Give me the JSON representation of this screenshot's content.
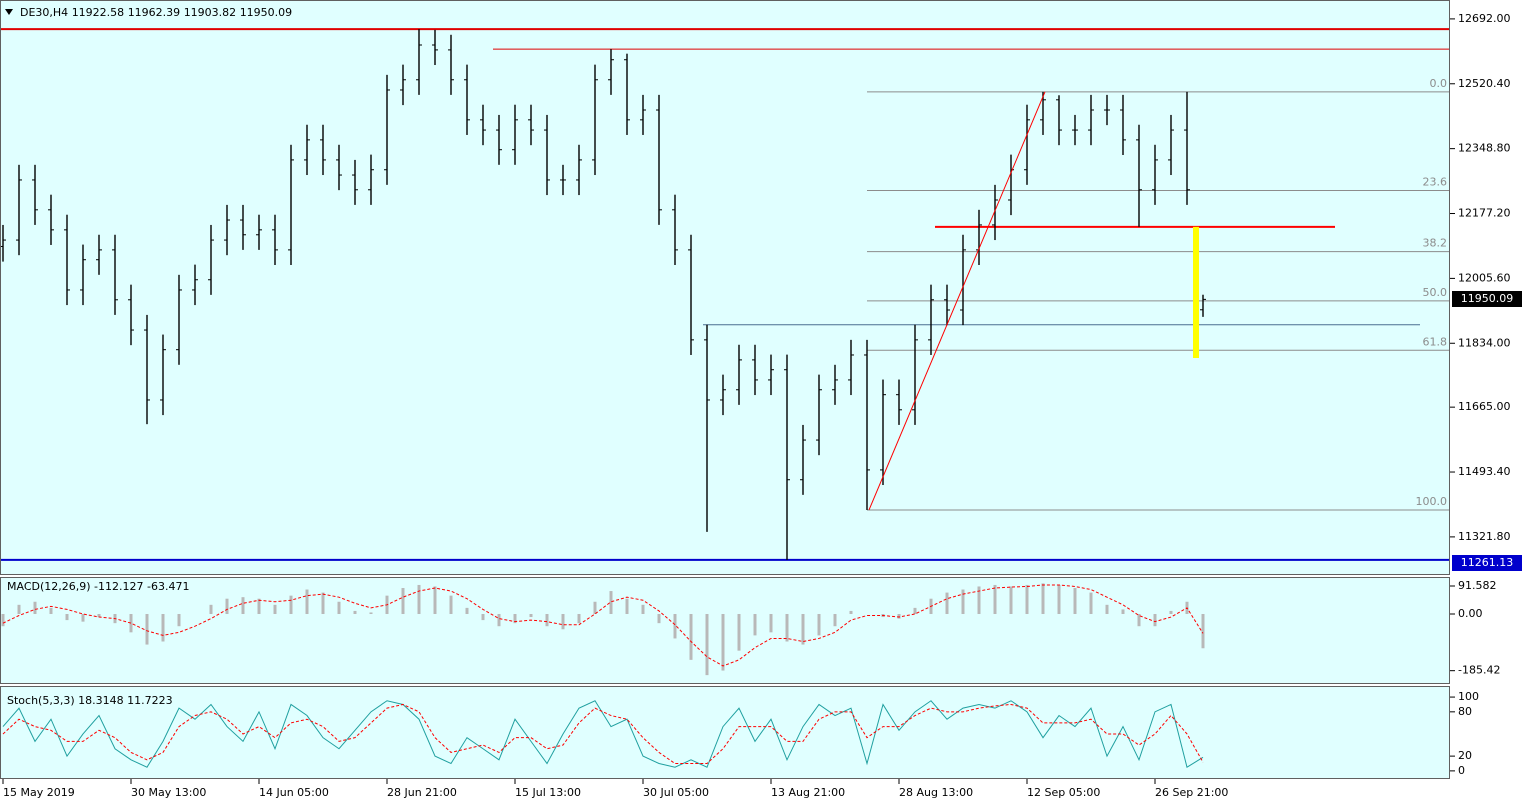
{
  "chart_data": [
    {
      "type": "ohlc",
      "title": "DE30,H4",
      "color": "#000000",
      "categories": [
        "15 May 2019",
        null,
        null,
        null,
        null,
        null,
        null,
        null,
        "30 May 13:00",
        null,
        null,
        null,
        null,
        null,
        null,
        null,
        "14 Jun 05:00",
        null,
        null,
        null,
        null,
        null,
        null,
        null,
        "28 Jun 21:00",
        null,
        null,
        null,
        null,
        null,
        null,
        null,
        "15 Jul 13:00",
        null,
        null,
        null,
        null,
        null,
        null,
        null,
        "30 Jul 05:00",
        null,
        null,
        null,
        null,
        null,
        null,
        null,
        "13 Aug 21:00",
        null,
        null,
        null,
        null,
        null,
        null,
        null,
        "28 Aug 13:00",
        null,
        null,
        null,
        null,
        null,
        null,
        null,
        "12 Sep 05:00",
        null,
        null,
        null,
        null,
        null,
        null,
        null,
        "26 Sep 21:00",
        null,
        null,
        null
      ],
      "open": [
        12090,
        12107,
        12266,
        12187,
        12134,
        11975,
        12055,
        12081,
        11949,
        11869,
        11684,
        11817,
        11975,
        12002,
        12107,
        12160,
        12121,
        12134,
        12081,
        12319,
        12372,
        12319,
        12279,
        12240,
        12293,
        12504,
        12531,
        12623,
        12610,
        12531,
        12425,
        12398,
        12346,
        12425,
        12398,
        12266,
        12266,
        12319,
        12531,
        12584,
        12425,
        12451,
        12187,
        12081,
        11843,
        11684,
        11711,
        11790,
        11737,
        11764,
        11473,
        11578,
        11711,
        11737,
        11803,
        11499,
        11698,
        11658,
        11843,
        11949,
        11922,
        12081,
        12147,
        12213,
        12293,
        12425,
        12478,
        12398,
        12398,
        12451,
        12451,
        12372,
        12240,
        12319,
        12398,
        11922.58
      ],
      "high": [
        12147,
        12306,
        12306,
        12227,
        12174,
        12095,
        12121,
        12121,
        11989,
        11909,
        11857,
        12015,
        12042,
        12147,
        12200,
        12200,
        12174,
        12174,
        12359,
        12412,
        12412,
        12359,
        12319,
        12333,
        12544,
        12571,
        12665,
        12663,
        12650,
        12571,
        12465,
        12438,
        12465,
        12465,
        12438,
        12306,
        12359,
        12571,
        12612,
        12600,
        12491,
        12491,
        12227,
        12121,
        11883,
        11751,
        11830,
        11830,
        11804,
        11804,
        11618,
        11751,
        11777,
        11843,
        11843,
        11738,
        11738,
        11883,
        11989,
        11989,
        12121,
        12187,
        12253,
        12333,
        12465,
        12499,
        12490,
        12438,
        12491,
        12491,
        12491,
        12412,
        12359,
        12438,
        12499,
        11962.39
      ],
      "low": [
        12050,
        12067,
        12147,
        12094,
        11935,
        11935,
        12015,
        11909,
        11829,
        11620,
        11644,
        11777,
        11935,
        11962,
        12067,
        12081,
        12081,
        12041,
        12041,
        12279,
        12279,
        12239,
        12200,
        12200,
        12253,
        12464,
        12491,
        12570,
        12491,
        12385,
        12358,
        12306,
        12306,
        12358,
        12226,
        12226,
        12226,
        12279,
        12491,
        12385,
        12385,
        12147,
        12041,
        11803,
        11335,
        11644,
        11671,
        11697,
        11697,
        11261.13,
        11433,
        11538,
        11671,
        11697,
        11393,
        11459,
        11618,
        11618,
        11803,
        11882,
        11882,
        12041,
        12107,
        12173,
        12253,
        12385,
        12358,
        12358,
        12358,
        12411,
        12332,
        12142,
        12200,
        12279,
        12200,
        11903.82
      ],
      "close": [
        12107,
        12266,
        12187,
        12134,
        11975,
        12055,
        12081,
        11949,
        11869,
        11684,
        11817,
        11975,
        12002,
        12107,
        12160,
        12121,
        12134,
        12081,
        12319,
        12372,
        12319,
        12279,
        12240,
        12293,
        12504,
        12531,
        12623,
        12610,
        12531,
        12425,
        12398,
        12346,
        12425,
        12398,
        12266,
        12266,
        12319,
        12531,
        12584,
        12425,
        12451,
        12187,
        12081,
        11843,
        11684,
        11711,
        11790,
        11737,
        11764,
        11473,
        11578,
        11711,
        11737,
        11803,
        11499,
        11698,
        11658,
        11843,
        11949,
        11922,
        12081,
        12147,
        12213,
        12293,
        12425,
        12478,
        12398,
        12398,
        12451,
        12451,
        12372,
        12240,
        12319,
        12398,
        12240,
        11950.09
      ],
      "ylim": [
        11221,
        12742
      ],
      "yticks": [
        {
          "value": 12692,
          "label": "12692.00"
        },
        {
          "value": 12520.4,
          "label": "12520.40"
        },
        {
          "value": 12348.8,
          "label": "12348.80"
        },
        {
          "value": 12177.2,
          "label": "12177.20"
        },
        {
          "value": 12005.6,
          "label": "12005.60"
        },
        {
          "value": 11834,
          "label": "11834.00"
        },
        {
          "value": 11665,
          "label": "11665.00"
        },
        {
          "value": 11493.4,
          "label": "11493.40"
        },
        {
          "value": 11321.8,
          "label": "11321.80"
        }
      ],
      "hlines": [
        {
          "value": 12665,
          "color": "#e00000"
        },
        {
          "value": 12612,
          "color": "#e00000"
        },
        {
          "value": 12142,
          "color": "#ff0000"
        },
        {
          "value": 11883,
          "color": "#4a6f90"
        },
        {
          "value": 11261.13,
          "color": "#0000cc"
        }
      ],
      "fibo": {
        "high": 12499,
        "low": 11393,
        "color": "#8c8c8c",
        "levels": [
          {
            "value": 0,
            "label": "0.0"
          },
          23.6,
          38.2,
          {
            "value": 50,
            "label": "50.0"
          },
          61.8,
          {
            "value": 100,
            "label": "100.0"
          }
        ]
      },
      "trendline": {
        "from": 11393,
        "to": 12499,
        "color": "#ff0000"
      },
      "rectangle": {
        "top": 12142,
        "bottom": 11795,
        "color": "#ffff00"
      }
    },
    {
      "type": "macd",
      "title": "MACD(12,26,9)",
      "series": [
        {
          "color": "#b8b8b8",
          "values": [
            -40,
            30,
            40,
            20,
            -20,
            -25,
            -10,
            -30,
            -60,
            -100,
            -90,
            -40,
            0,
            30,
            50,
            55,
            50,
            30,
            60,
            80,
            70,
            40,
            10,
            5,
            60,
            85,
            95,
            90,
            60,
            20,
            -20,
            -40,
            -30,
            -10,
            -40,
            -50,
            -30,
            40,
            75,
            50,
            30,
            -30,
            -80,
            -150,
            -200,
            -185,
            -120,
            -70,
            -60,
            -90,
            -100,
            -70,
            -40,
            10,
            0,
            -10,
            -15,
            20,
            50,
            70,
            80,
            90,
            95,
            90,
            95,
            100,
            95,
            85,
            70,
            30,
            15,
            -40,
            -40,
            10,
            40,
            -112.127
          ]
        },
        {
          "color": "#ff0000",
          "dashed": true,
          "values": [
            -30,
            -5,
            15,
            25,
            15,
            0,
            -10,
            -15,
            -30,
            -55,
            -70,
            -60,
            -40,
            -15,
            15,
            35,
            45,
            40,
            45,
            60,
            65,
            55,
            35,
            20,
            30,
            55,
            75,
            85,
            75,
            50,
            15,
            -15,
            -25,
            -20,
            -25,
            -35,
            -35,
            0,
            40,
            55,
            45,
            10,
            -35,
            -90,
            -140,
            -170,
            -150,
            -110,
            -80,
            -80,
            -90,
            -80,
            -60,
            -20,
            -5,
            -5,
            -10,
            0,
            25,
            50,
            65,
            75,
            85,
            88,
            90,
            95,
            95,
            90,
            80,
            55,
            30,
            -5,
            -25,
            -10,
            20,
            -63.471
          ]
        }
      ],
      "ylim": [
        -229,
        121
      ],
      "yticks": [
        91.582,
        {
          "value": 0,
          "label": "0.00"
        },
        -185.42
      ]
    },
    {
      "type": "line",
      "title": "Stoch(5,3,3)",
      "series": [
        {
          "color": "#20a0a0",
          "values": [
            60,
            85,
            40,
            70,
            20,
            50,
            75,
            30,
            15,
            5,
            40,
            85,
            70,
            90,
            60,
            40,
            80,
            30,
            90,
            75,
            45,
            30,
            55,
            80,
            95,
            90,
            70,
            20,
            10,
            45,
            30,
            15,
            70,
            40,
            10,
            50,
            85,
            95,
            60,
            70,
            20,
            10,
            5,
            15,
            5,
            60,
            85,
            40,
            70,
            15,
            60,
            90,
            75,
            85,
            10,
            90,
            55,
            80,
            95,
            70,
            85,
            90,
            85,
            95,
            80,
            45,
            75,
            60,
            85,
            20,
            60,
            15,
            80,
            90,
            5,
            18.3148
          ]
        },
        {
          "color": "#ff0000",
          "dashed": true,
          "values": [
            50,
            70,
            60,
            55,
            40,
            40,
            55,
            45,
            25,
            15,
            25,
            60,
            75,
            80,
            70,
            50,
            60,
            45,
            65,
            70,
            60,
            40,
            45,
            65,
            85,
            90,
            80,
            45,
            25,
            30,
            35,
            25,
            45,
            45,
            30,
            35,
            65,
            85,
            75,
            70,
            45,
            25,
            10,
            10,
            10,
            30,
            60,
            60,
            60,
            40,
            40,
            70,
            80,
            80,
            45,
            60,
            60,
            75,
            85,
            80,
            80,
            85,
            88,
            90,
            85,
            65,
            65,
            65,
            70,
            50,
            50,
            35,
            50,
            75,
            50,
            11.7223
          ]
        }
      ],
      "ylim": [
        -11,
        115
      ],
      "yticks": [
        100,
        80,
        20,
        0
      ]
    }
  ]
}
